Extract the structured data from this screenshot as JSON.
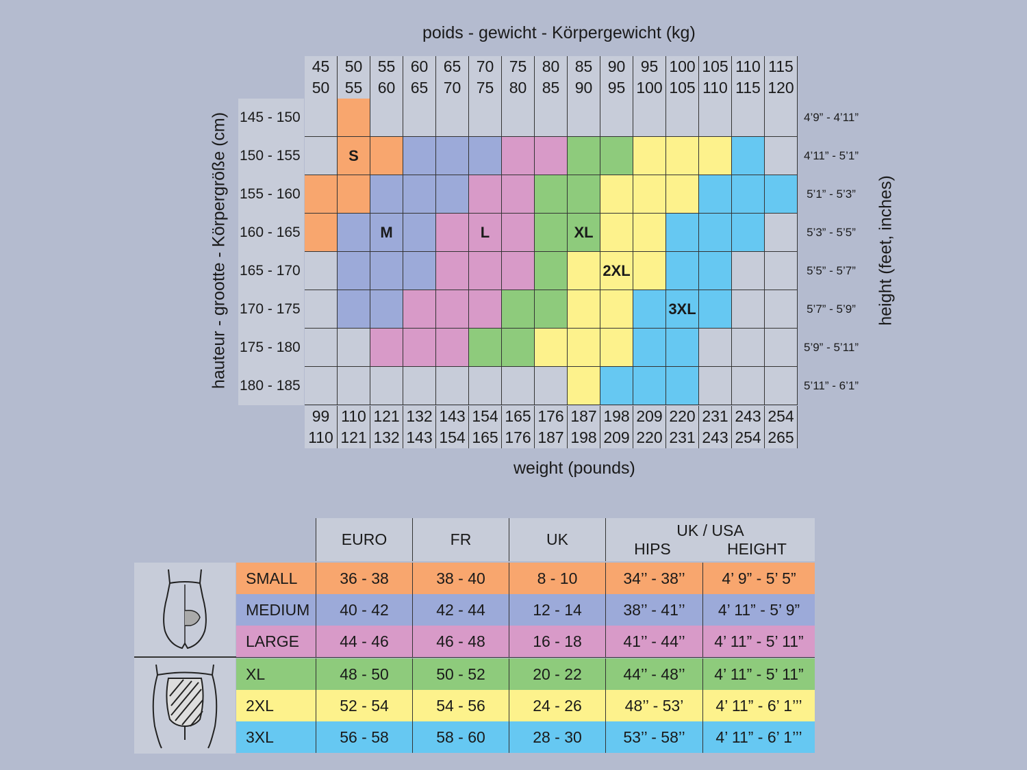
{
  "chart_data": {
    "type": "heatmap",
    "title": "poids - gewicht - Körpergewicht (kg)",
    "xlabel_bottom": "weight (pounds)",
    "ylabel_left": "hauteur - grootte - Körpergröße (cm)",
    "ylabel_right": "height (feet, inches)",
    "kg_top": [
      "45",
      "50",
      "55",
      "60",
      "65",
      "70",
      "75",
      "80",
      "85",
      "90",
      "95",
      "100",
      "105",
      "110",
      "115"
    ],
    "kg_bottom": [
      "50",
      "55",
      "60",
      "65",
      "70",
      "75",
      "80",
      "85",
      "90",
      "95",
      "100",
      "105",
      "110",
      "115",
      "120"
    ],
    "lb_top": [
      "99",
      "110",
      "121",
      "132",
      "143",
      "154",
      "165",
      "176",
      "187",
      "198",
      "209",
      "220",
      "231",
      "243",
      "254"
    ],
    "lb_bottom": [
      "110",
      "121",
      "132",
      "143",
      "154",
      "165",
      "176",
      "187",
      "198",
      "209",
      "220",
      "231",
      "243",
      "254",
      "265"
    ],
    "height_cm": [
      "145 - 150",
      "150 - 155",
      "155 - 160",
      "160 - 165",
      "165 - 170",
      "170 - 175",
      "175 - 180",
      "180 - 185"
    ],
    "height_ft": [
      "4’9” - 4’11”",
      "4’11” - 5’1”",
      "5’1” - 5’3”",
      "5’3” - 5’5”",
      "5’5” - 5’7”",
      "5’7” - 5’9”",
      "5’9” - 5’11”",
      "5’11” - 6’1”"
    ],
    "grid": [
      [
        null,
        "S",
        null,
        null,
        null,
        null,
        null,
        null,
        null,
        null,
        null,
        null,
        null,
        null,
        null
      ],
      [
        null,
        "S",
        "S",
        "M",
        "M",
        "M",
        "L",
        "L",
        "XL",
        "XL",
        "2XL",
        "2XL",
        "2XL",
        "3XL",
        null
      ],
      [
        "S",
        "S",
        "M",
        "M",
        "M",
        "L",
        "L",
        "XL",
        "XL",
        "2XL",
        "2XL",
        "2XL",
        "3XL",
        "3XL",
        "3XL"
      ],
      [
        "S",
        "M",
        "M",
        "M",
        "L",
        "L",
        "L",
        "XL",
        "XL",
        "2XL",
        "2XL",
        "3XL",
        "3XL",
        "3XL",
        null
      ],
      [
        null,
        "M",
        "M",
        "M",
        "L",
        "L",
        "L",
        "XL",
        "2XL",
        "2XL",
        "2XL",
        "3XL",
        "3XL",
        null,
        null
      ],
      [
        null,
        "M",
        "M",
        "L",
        "L",
        "L",
        "XL",
        "XL",
        "2XL",
        "2XL",
        "3XL",
        "3XL",
        "3XL",
        null,
        null
      ],
      [
        null,
        null,
        "L",
        "L",
        "L",
        "XL",
        "XL",
        "2XL",
        "2XL",
        "2XL",
        "3XL",
        "3XL",
        null,
        null,
        null
      ],
      [
        null,
        null,
        null,
        null,
        null,
        null,
        null,
        null,
        "2XL",
        "3XL",
        "3XL",
        "3XL",
        null,
        null,
        null
      ]
    ],
    "cell_labels": [
      {
        "row": 1,
        "col": 1,
        "text": "S"
      },
      {
        "row": 3,
        "col": 2,
        "text": "M"
      },
      {
        "row": 3,
        "col": 5,
        "text": "L"
      },
      {
        "row": 3,
        "col": 8,
        "text": "XL"
      },
      {
        "row": 4,
        "col": 9,
        "text": "2XL"
      },
      {
        "row": 5,
        "col": 11,
        "text": "3XL"
      }
    ],
    "colors": {
      "S": "#f8a66e",
      "M": "#9caad9",
      "L": "#d89ac8",
      "XL": "#8ecb7c",
      "2XL": "#fdf28c",
      "3XL": "#66c8f2",
      "empty": "#c7ccd9"
    }
  },
  "table": {
    "headers": [
      "EURO",
      "FR",
      "UK"
    ],
    "ukusa": {
      "title": "UK / USA",
      "hips": "HIPS",
      "height": "HEIGHT"
    },
    "rows": [
      {
        "size": "SMALL",
        "key": "S",
        "euro": "36 - 38",
        "fr": "38 - 40",
        "uk": "8 - 10",
        "hips": "34’’ - 38’’",
        "height": "4’ 9” - 5’ 5”"
      },
      {
        "size": "MEDIUM",
        "key": "M",
        "euro": "40 - 42",
        "fr": "42 - 44",
        "uk": "12 - 14",
        "hips": "38’’ - 41’’",
        "height": "4’ 11” - 5’ 9”"
      },
      {
        "size": "LARGE",
        "key": "L",
        "euro": "44 - 46",
        "fr": "46 - 48",
        "uk": "16 - 18",
        "hips": "41’’ -  44’’",
        "height": "4’ 11” - 5’ 11”"
      },
      {
        "size": "XL",
        "key": "XL",
        "euro": "48 - 50",
        "fr": "50 - 52",
        "uk": "20 - 22",
        "hips": "44’’ - 48’’",
        "height": "4’ 11” - 5’ 11”"
      },
      {
        "size": "2XL",
        "key": "2XL",
        "euro": "52 - 54",
        "fr": "54 - 56",
        "uk": "24 - 26",
        "hips": "48’’ - 53’",
        "height": "4’ 11” - 6’ 1’’’"
      },
      {
        "size": "3XL",
        "key": "3XL",
        "euro": "56 - 58",
        "fr": "58 - 60",
        "uk": "28 - 30",
        "hips": "53’’ - 58’’",
        "height": "4’ 11” - 6’ 1’’’"
      }
    ],
    "icons": [
      "tights-standard-icon",
      "tights-control-top-icon"
    ]
  }
}
